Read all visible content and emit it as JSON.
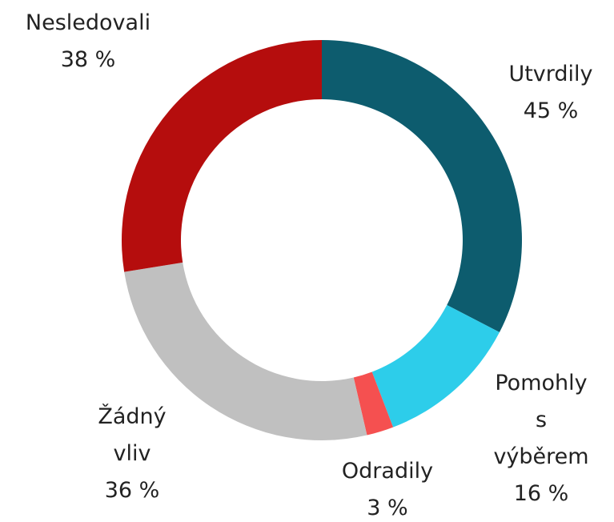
{
  "chart_data": {
    "type": "donut",
    "categories": [
      "Utvrdily",
      "Pomohly\ns výběrem",
      "Odradily",
      "Žádný\nvliv",
      "Nesledovali"
    ],
    "values": [
      45,
      16,
      3,
      36,
      38
    ],
    "value_labels": [
      "45 %",
      "16 %",
      "3 %",
      "36 %",
      "38 %"
    ],
    "colors": [
      "#0d5c6e",
      "#2dcdea",
      "#f55050",
      "#c0c0c0",
      "#b50d0d"
    ]
  }
}
